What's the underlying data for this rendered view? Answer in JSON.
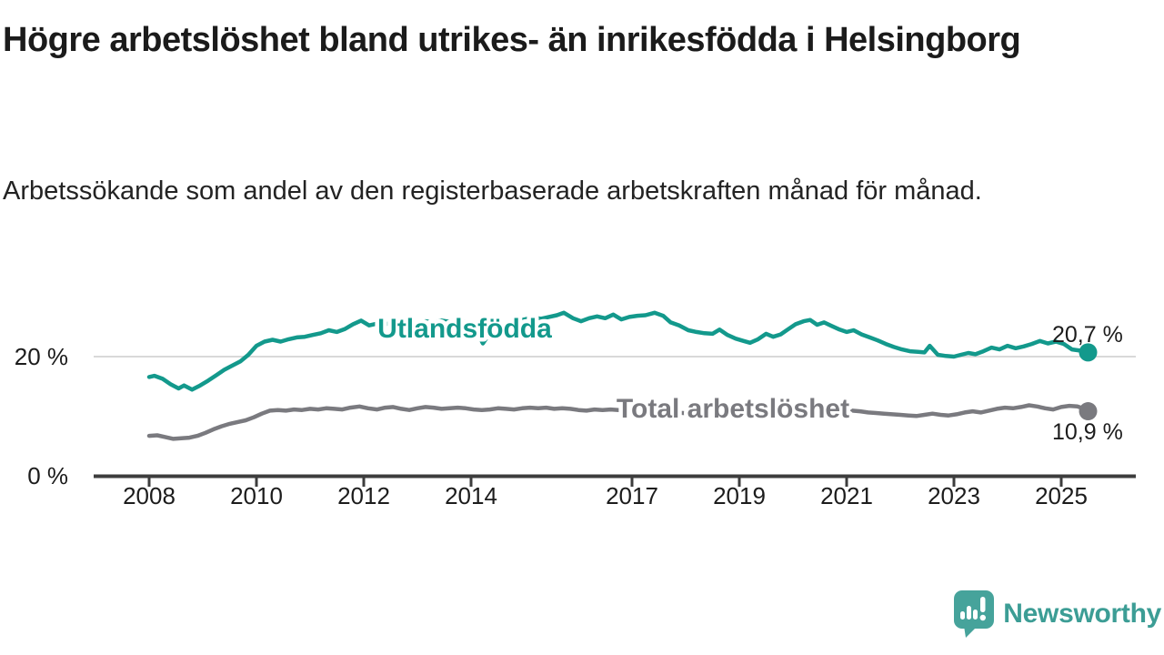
{
  "header": {
    "title": "Högre arbetslöshet bland utrikes- än inrikesfödda i Helsingborg",
    "subtitle": "Arbetssökande som andel av den registerbaserade arbetskraften månad för månad."
  },
  "chart_data": {
    "type": "line",
    "unit": "%",
    "x_range": [
      2008,
      2025.5
    ],
    "y_range": [
      0,
      28
    ],
    "grid": "single horizontal gridline at 20 %",
    "legend_position": "inline labels on lines",
    "x_ticks": [
      2008,
      2010,
      2012,
      2014,
      2017,
      2019,
      2021,
      2023,
      2025
    ],
    "y_ticks": [
      {
        "value": 0,
        "label": "0 %",
        "gridline": false
      },
      {
        "value": 20,
        "label": "20 %",
        "gridline": true
      }
    ],
    "series": [
      {
        "name": "Utlandsfödda",
        "color": "#13998c",
        "end_label": "20,7 %",
        "end_value": 20.7,
        "points": [
          [
            2008.0,
            16.6
          ],
          [
            2008.1,
            16.8
          ],
          [
            2008.25,
            16.3
          ],
          [
            2008.4,
            15.4
          ],
          [
            2008.55,
            14.7
          ],
          [
            2008.65,
            15.2
          ],
          [
            2008.8,
            14.5
          ],
          [
            2008.95,
            15.2
          ],
          [
            2009.1,
            16.0
          ],
          [
            2009.25,
            16.9
          ],
          [
            2009.4,
            17.8
          ],
          [
            2009.55,
            18.5
          ],
          [
            2009.7,
            19.2
          ],
          [
            2009.85,
            20.3
          ],
          [
            2010.0,
            21.8
          ],
          [
            2010.15,
            22.5
          ],
          [
            2010.3,
            22.8
          ],
          [
            2010.45,
            22.5
          ],
          [
            2010.6,
            22.9
          ],
          [
            2010.75,
            23.2
          ],
          [
            2010.9,
            23.3
          ],
          [
            2011.05,
            23.6
          ],
          [
            2011.2,
            23.9
          ],
          [
            2011.35,
            24.4
          ],
          [
            2011.5,
            24.1
          ],
          [
            2011.65,
            24.6
          ],
          [
            2011.8,
            25.4
          ],
          [
            2011.95,
            26.0
          ],
          [
            2012.1,
            25.2
          ],
          [
            2012.25,
            25.5
          ],
          [
            2012.4,
            25.4
          ],
          [
            2012.55,
            25.7
          ],
          [
            2012.7,
            25.5
          ],
          [
            2012.85,
            25.8
          ],
          [
            2013.0,
            25.6
          ],
          [
            2013.15,
            25.9
          ],
          [
            2013.3,
            25.7
          ],
          [
            2013.45,
            26.0
          ],
          [
            2013.6,
            25.8
          ],
          [
            2013.75,
            26.0
          ],
          [
            2013.9,
            25.7
          ],
          [
            2014.05,
            25.2
          ],
          [
            2014.22,
            22.2
          ],
          [
            2014.4,
            24.6
          ],
          [
            2014.55,
            25.1
          ],
          [
            2014.7,
            25.5
          ],
          [
            2014.85,
            25.9
          ],
          [
            2015.0,
            26.2
          ],
          [
            2015.15,
            26.5
          ],
          [
            2015.3,
            26.3
          ],
          [
            2015.45,
            26.6
          ],
          [
            2015.6,
            26.9
          ],
          [
            2015.73,
            27.3
          ],
          [
            2015.9,
            26.4
          ],
          [
            2016.05,
            25.9
          ],
          [
            2016.2,
            26.4
          ],
          [
            2016.35,
            26.7
          ],
          [
            2016.5,
            26.4
          ],
          [
            2016.65,
            27.0
          ],
          [
            2016.8,
            26.2
          ],
          [
            2016.95,
            26.6
          ],
          [
            2017.1,
            26.8
          ],
          [
            2017.25,
            26.9
          ],
          [
            2017.42,
            27.3
          ],
          [
            2017.58,
            26.8
          ],
          [
            2017.72,
            25.7
          ],
          [
            2017.88,
            25.2
          ],
          [
            2018.05,
            24.4
          ],
          [
            2018.2,
            24.1
          ],
          [
            2018.35,
            23.9
          ],
          [
            2018.5,
            23.8
          ],
          [
            2018.63,
            24.5
          ],
          [
            2018.78,
            23.6
          ],
          [
            2018.93,
            23.0
          ],
          [
            2019.08,
            22.6
          ],
          [
            2019.2,
            22.3
          ],
          [
            2019.35,
            22.9
          ],
          [
            2019.5,
            23.8
          ],
          [
            2019.63,
            23.3
          ],
          [
            2019.77,
            23.7
          ],
          [
            2019.9,
            24.5
          ],
          [
            2020.05,
            25.4
          ],
          [
            2020.2,
            25.9
          ],
          [
            2020.32,
            26.1
          ],
          [
            2020.45,
            25.3
          ],
          [
            2020.58,
            25.7
          ],
          [
            2020.72,
            25.1
          ],
          [
            2020.87,
            24.5
          ],
          [
            2021.0,
            24.1
          ],
          [
            2021.13,
            24.4
          ],
          [
            2021.28,
            23.7
          ],
          [
            2021.43,
            23.2
          ],
          [
            2021.58,
            22.7
          ],
          [
            2021.73,
            22.1
          ],
          [
            2021.88,
            21.6
          ],
          [
            2022.03,
            21.2
          ],
          [
            2022.18,
            20.9
          ],
          [
            2022.33,
            20.8
          ],
          [
            2022.45,
            20.7
          ],
          [
            2022.55,
            21.8
          ],
          [
            2022.7,
            20.3
          ],
          [
            2022.85,
            20.1
          ],
          [
            2023.0,
            20.0
          ],
          [
            2023.13,
            20.3
          ],
          [
            2023.27,
            20.6
          ],
          [
            2023.4,
            20.4
          ],
          [
            2023.55,
            20.9
          ],
          [
            2023.7,
            21.5
          ],
          [
            2023.85,
            21.2
          ],
          [
            2024.0,
            21.8
          ],
          [
            2024.15,
            21.4
          ],
          [
            2024.3,
            21.7
          ],
          [
            2024.45,
            22.1
          ],
          [
            2024.6,
            22.6
          ],
          [
            2024.75,
            22.2
          ],
          [
            2024.9,
            22.5
          ],
          [
            2025.05,
            22.1
          ],
          [
            2025.2,
            21.2
          ],
          [
            2025.35,
            21.0
          ],
          [
            2025.5,
            20.7
          ]
        ]
      },
      {
        "name": "Total arbetslöshet",
        "color": "#7a7a7f",
        "end_label": "10,9 %",
        "end_value": 10.9,
        "points": [
          [
            2008.0,
            6.8
          ],
          [
            2008.15,
            6.9
          ],
          [
            2008.3,
            6.6
          ],
          [
            2008.45,
            6.3
          ],
          [
            2008.6,
            6.4
          ],
          [
            2008.75,
            6.5
          ],
          [
            2008.9,
            6.8
          ],
          [
            2009.05,
            7.3
          ],
          [
            2009.2,
            7.9
          ],
          [
            2009.35,
            8.4
          ],
          [
            2009.5,
            8.8
          ],
          [
            2009.65,
            9.1
          ],
          [
            2009.8,
            9.4
          ],
          [
            2009.95,
            9.9
          ],
          [
            2010.1,
            10.5
          ],
          [
            2010.25,
            11.0
          ],
          [
            2010.4,
            11.1
          ],
          [
            2010.55,
            11.0
          ],
          [
            2010.7,
            11.2
          ],
          [
            2010.85,
            11.1
          ],
          [
            2011.0,
            11.3
          ],
          [
            2011.15,
            11.2
          ],
          [
            2011.3,
            11.4
          ],
          [
            2011.45,
            11.3
          ],
          [
            2011.6,
            11.2
          ],
          [
            2011.75,
            11.5
          ],
          [
            2011.92,
            11.7
          ],
          [
            2012.08,
            11.4
          ],
          [
            2012.25,
            11.2
          ],
          [
            2012.4,
            11.5
          ],
          [
            2012.55,
            11.6
          ],
          [
            2012.7,
            11.3
          ],
          [
            2012.85,
            11.1
          ],
          [
            2013.0,
            11.4
          ],
          [
            2013.15,
            11.6
          ],
          [
            2013.3,
            11.5
          ],
          [
            2013.45,
            11.3
          ],
          [
            2013.6,
            11.4
          ],
          [
            2013.75,
            11.5
          ],
          [
            2013.9,
            11.4
          ],
          [
            2014.05,
            11.2
          ],
          [
            2014.2,
            11.1
          ],
          [
            2014.35,
            11.2
          ],
          [
            2014.5,
            11.4
          ],
          [
            2014.65,
            11.3
          ],
          [
            2014.8,
            11.2
          ],
          [
            2014.95,
            11.4
          ],
          [
            2015.1,
            11.5
          ],
          [
            2015.25,
            11.4
          ],
          [
            2015.4,
            11.5
          ],
          [
            2015.55,
            11.3
          ],
          [
            2015.7,
            11.4
          ],
          [
            2015.85,
            11.3
          ],
          [
            2016.0,
            11.1
          ],
          [
            2016.15,
            11.0
          ],
          [
            2016.3,
            11.2
          ],
          [
            2016.45,
            11.1
          ],
          [
            2016.6,
            11.2
          ],
          [
            2016.75,
            11.1
          ],
          [
            2016.9,
            11.2
          ],
          [
            2017.05,
            11.0
          ],
          [
            2017.2,
            10.9
          ],
          [
            2017.35,
            10.8
          ],
          [
            2017.5,
            10.9
          ],
          [
            2017.65,
            10.8
          ],
          [
            2017.8,
            10.7
          ],
          [
            2017.95,
            10.6
          ],
          [
            2018.1,
            10.5
          ],
          [
            2018.25,
            10.6
          ],
          [
            2018.4,
            10.5
          ],
          [
            2018.55,
            10.6
          ],
          [
            2018.7,
            10.5
          ],
          [
            2018.85,
            10.6
          ],
          [
            2019.0,
            10.8
          ],
          [
            2019.15,
            11.0
          ],
          [
            2019.3,
            11.1
          ],
          [
            2019.45,
            11.2
          ],
          [
            2019.6,
            11.0
          ],
          [
            2019.75,
            11.1
          ],
          [
            2019.9,
            11.2
          ],
          [
            2020.05,
            11.4
          ],
          [
            2020.2,
            11.6
          ],
          [
            2020.35,
            11.5
          ],
          [
            2020.5,
            11.4
          ],
          [
            2020.65,
            11.3
          ],
          [
            2020.8,
            11.2
          ],
          [
            2020.95,
            11.1
          ],
          [
            2021.1,
            11.0
          ],
          [
            2021.25,
            10.9
          ],
          [
            2021.4,
            10.7
          ],
          [
            2021.55,
            10.6
          ],
          [
            2021.7,
            10.5
          ],
          [
            2021.85,
            10.4
          ],
          [
            2022.0,
            10.3
          ],
          [
            2022.15,
            10.2
          ],
          [
            2022.3,
            10.1
          ],
          [
            2022.45,
            10.3
          ],
          [
            2022.6,
            10.5
          ],
          [
            2022.75,
            10.3
          ],
          [
            2022.9,
            10.2
          ],
          [
            2023.05,
            10.4
          ],
          [
            2023.2,
            10.7
          ],
          [
            2023.35,
            10.9
          ],
          [
            2023.5,
            10.7
          ],
          [
            2023.65,
            11.0
          ],
          [
            2023.8,
            11.3
          ],
          [
            2023.95,
            11.5
          ],
          [
            2024.1,
            11.4
          ],
          [
            2024.25,
            11.6
          ],
          [
            2024.4,
            11.9
          ],
          [
            2024.55,
            11.7
          ],
          [
            2024.7,
            11.4
          ],
          [
            2024.85,
            11.2
          ],
          [
            2025.0,
            11.6
          ],
          [
            2025.15,
            11.8
          ],
          [
            2025.3,
            11.7
          ],
          [
            2025.4,
            11.4
          ],
          [
            2025.5,
            10.9
          ]
        ]
      }
    ]
  },
  "branding": {
    "logo_text": "Newsworthy",
    "logo_color": "#3c9d95",
    "icon_color": "#46a39b"
  }
}
